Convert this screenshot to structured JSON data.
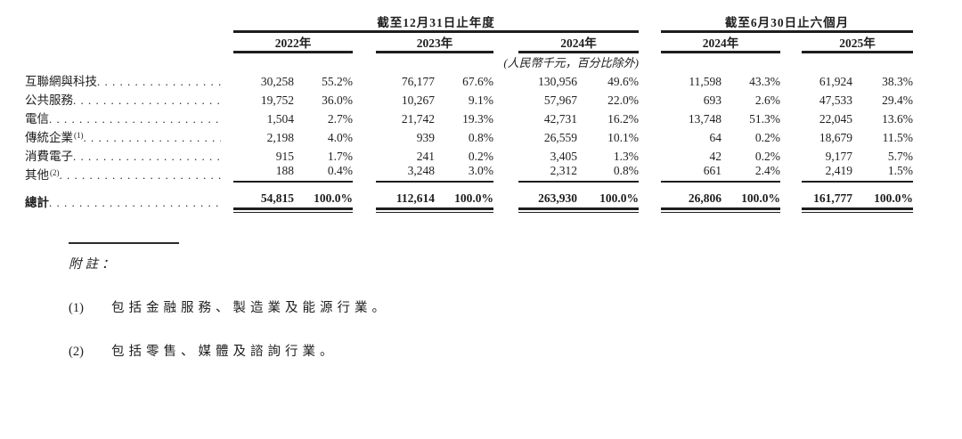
{
  "table": {
    "period_groups": [
      {
        "label": "截至12月31日止年度",
        "years": [
          "2022年",
          "2023年",
          "2024年"
        ]
      },
      {
        "label": "截至6月30日止六個月",
        "years": [
          "2024年",
          "2025年"
        ]
      }
    ],
    "unit_note": "(人民幣千元，百分比除外)",
    "rows": [
      {
        "label": "互聯網與科技",
        "sup": "",
        "values": [
          "30,258",
          "55.2%",
          "76,177",
          "67.6%",
          "130,956",
          "49.6%",
          "11,598",
          "43.3%",
          "61,924",
          "38.3%"
        ]
      },
      {
        "label": "公共服務",
        "sup": "",
        "values": [
          "19,752",
          "36.0%",
          "10,267",
          "9.1%",
          "57,967",
          "22.0%",
          "693",
          "2.6%",
          "47,533",
          "29.4%"
        ]
      },
      {
        "label": "電信",
        "sup": "",
        "values": [
          "1,504",
          "2.7%",
          "21,742",
          "19.3%",
          "42,731",
          "16.2%",
          "13,748",
          "51.3%",
          "22,045",
          "13.6%"
        ]
      },
      {
        "label": "傳統企業",
        "sup": "(1)",
        "values": [
          "2,198",
          "4.0%",
          "939",
          "0.8%",
          "26,559",
          "10.1%",
          "64",
          "0.2%",
          "18,679",
          "11.5%"
        ]
      },
      {
        "label": "消費電子",
        "sup": "",
        "values": [
          "915",
          "1.7%",
          "241",
          "0.2%",
          "3,405",
          "1.3%",
          "42",
          "0.2%",
          "9,177",
          "5.7%"
        ]
      },
      {
        "label": "其他",
        "sup": "(2)",
        "values": [
          "188",
          "0.4%",
          "3,248",
          "3.0%",
          "2,312",
          "0.8%",
          "661",
          "2.4%",
          "2,419",
          "1.5%"
        ]
      }
    ],
    "total_row": {
      "label": "總計",
      "values": [
        "54,815",
        "100.0%",
        "112,614",
        "100.0%",
        "263,930",
        "100.0%",
        "26,806",
        "100.0%",
        "161,777",
        "100.0%"
      ]
    }
  },
  "notes": {
    "title": "附註：",
    "items": [
      {
        "num": "(1)",
        "text": "包括金融服務、製造業及能源行業。"
      },
      {
        "num": "(2)",
        "text": "包括零售、媒體及諮詢行業。"
      }
    ]
  }
}
